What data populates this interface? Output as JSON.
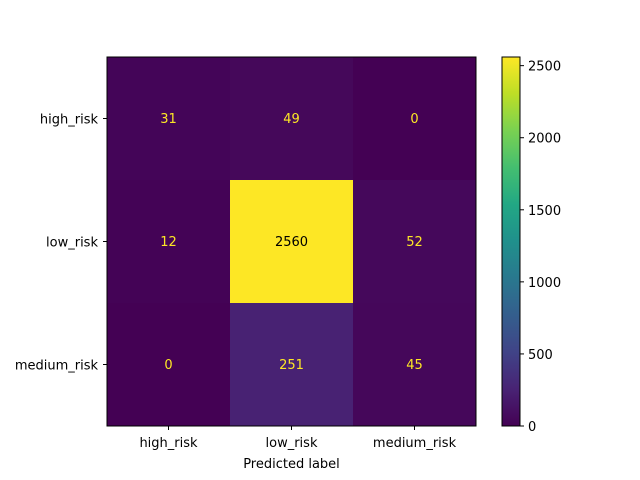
{
  "chart_data": {
    "type": "heatmap",
    "title": "",
    "xlabel": "Predicted label",
    "ylabel": "",
    "x_categories": [
      "high_risk",
      "low_risk",
      "medium_risk"
    ],
    "y_categories": [
      "high_risk",
      "low_risk",
      "medium_risk"
    ],
    "values": [
      [
        31,
        49,
        0
      ],
      [
        12,
        2560,
        52
      ],
      [
        0,
        251,
        45
      ]
    ],
    "colormap": "viridis",
    "color_range": [
      0,
      2560
    ],
    "colorbar_ticks": [
      0,
      500,
      1000,
      1500,
      2000,
      2500
    ],
    "text_color_dark_cells": "#fde725",
    "text_color_light_cells": "#000000"
  }
}
